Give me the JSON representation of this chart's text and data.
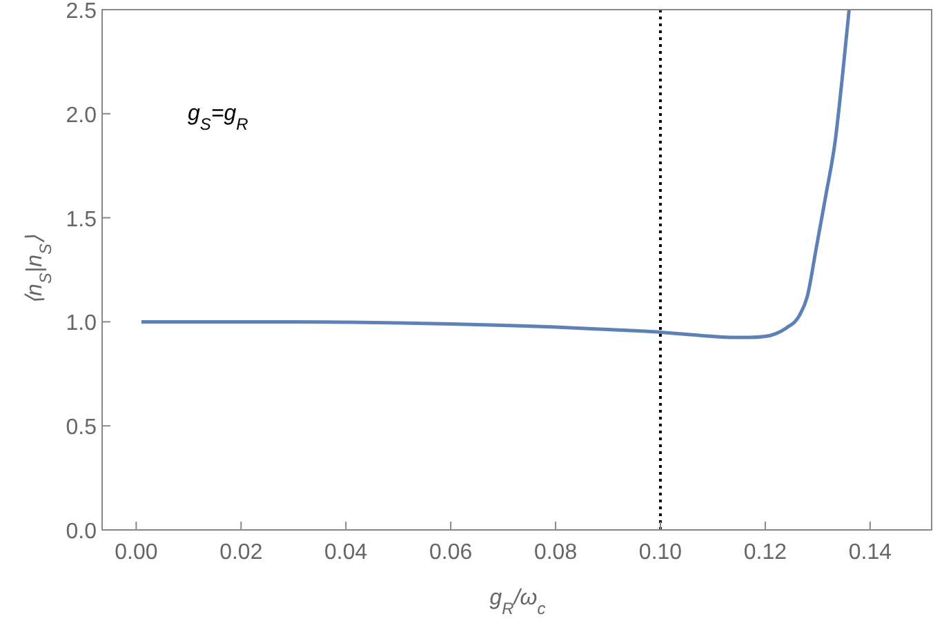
{
  "chart_data": {
    "type": "line",
    "xlabel": "g$_{R}$/ω$_{c}$",
    "ylabel": "⟨n$_{S}$|n$_{S}$⟩",
    "annotations": [
      "g$_{S}$=g$_{R}$"
    ],
    "series": [
      {
        "color": "#5e81b5",
        "x": [
          0.001,
          0.01,
          0.02,
          0.03,
          0.04,
          0.05,
          0.06,
          0.07,
          0.08,
          0.09,
          0.1,
          0.105,
          0.11,
          0.114,
          0.117,
          0.12,
          0.122,
          0.124,
          0.1265,
          0.128,
          0.1297,
          0.1315,
          0.1334,
          0.1348,
          0.136
        ],
        "values": [
          1.0,
          1.0,
          1.0,
          1.0,
          0.998,
          0.995,
          0.99,
          0.983,
          0.975,
          0.963,
          0.95,
          0.94,
          0.93,
          0.925,
          0.925,
          0.93,
          0.943,
          0.97,
          1.03,
          1.12,
          1.35,
          1.6,
          1.88,
          2.2,
          2.5
        ]
      }
    ],
    "ref_lines": [
      {
        "axis": "x",
        "value": 0.1,
        "color": "#000000",
        "line_style": "dotted"
      }
    ],
    "xlim": [
      -0.0065,
      0.152
    ],
    "ylim": [
      0,
      2.5
    ],
    "xticks": [
      {
        "value": 0,
        "label": "0.00"
      },
      {
        "value": 0.02,
        "label": "0.02"
      },
      {
        "value": 0.04,
        "label": "0.04"
      },
      {
        "value": 0.06,
        "label": "0.06"
      },
      {
        "value": 0.08,
        "label": "0.08"
      },
      {
        "value": 0.1,
        "label": "0.10"
      },
      {
        "value": 0.12,
        "label": "0.12"
      },
      {
        "value": 0.14,
        "label": "0.14"
      }
    ],
    "yticks": [
      {
        "value": 0,
        "label": "0.0"
      },
      {
        "value": 0.5,
        "label": "0.5"
      },
      {
        "value": 1,
        "label": "1.0"
      },
      {
        "value": 1.5,
        "label": "1.5"
      },
      {
        "value": 2,
        "label": "2.0"
      },
      {
        "value": 2.5,
        "label": "2.5"
      }
    ],
    "grid": false,
    "marker": "none",
    "line_style": "solid"
  }
}
